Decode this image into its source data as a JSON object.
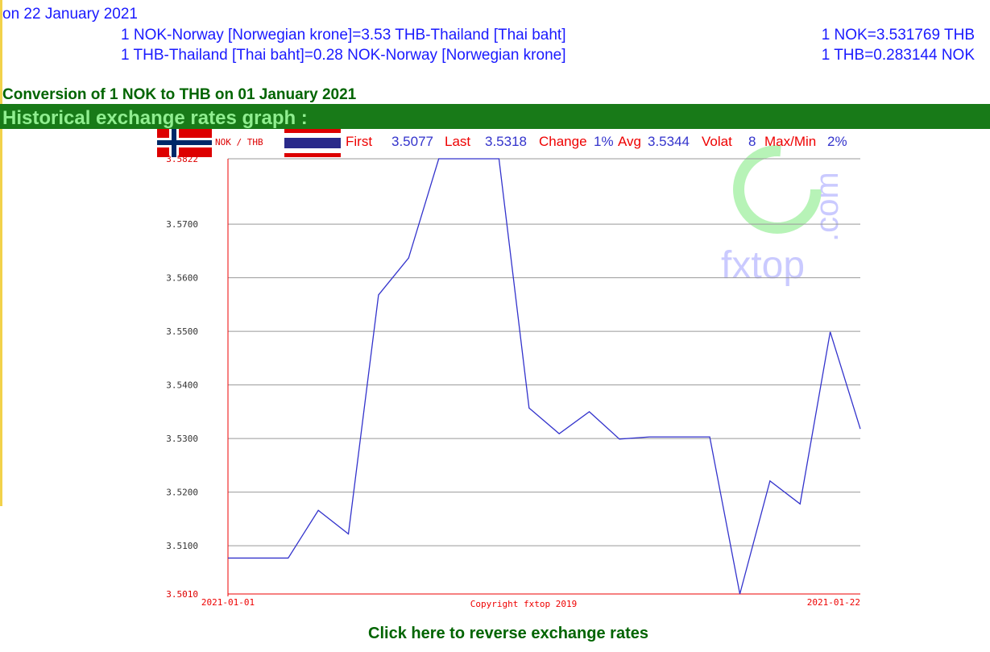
{
  "header": {
    "date_line": "on 22 January 2021",
    "rates": [
      {
        "text": "1 NOK-Norway [Norwegian krone]=3.53 THB-Thailand [Thai baht]",
        "exact": "1 NOK=3.531769 THB"
      },
      {
        "text": "1 THB-Thailand [Thai baht]=0.28 NOK-Norway [Norwegian krone]",
        "exact": "1 THB=0.283144 NOK"
      }
    ],
    "conversion": "Conversion of 1 NOK to THB on 01 January 2021",
    "section": "Historical exchange rates graph :"
  },
  "stats": {
    "pair": "NOK / THB",
    "first_label": "First",
    "first": "3.5077",
    "last_label": "Last",
    "last": "3.5318",
    "change_label": "Change",
    "change": "1%",
    "avg_label": "Avg",
    "avg": "3.5344",
    "volat_label": "Volat",
    "volat": "8",
    "maxmin_label": "Max/Min",
    "maxmin": "2%"
  },
  "watermark": {
    "brand": "fxtop",
    "domain": ".com"
  },
  "chart_data": {
    "type": "line",
    "categories": [
      "2021-01-01",
      null,
      null,
      null,
      null,
      null,
      null,
      null,
      null,
      null,
      null,
      null,
      null,
      null,
      null,
      null,
      null,
      null,
      null,
      null,
      null,
      "2021-01-22"
    ],
    "series": [
      {
        "name": "NOK / THB",
        "color": "#3333cc",
        "values": [
          3.5077,
          3.5077,
          3.5077,
          3.5166,
          3.5122,
          3.5568,
          3.5637,
          3.5822,
          3.5822,
          3.5822,
          3.5357,
          3.5309,
          3.535,
          3.5299,
          3.5303,
          3.5303,
          3.5303,
          3.501,
          3.5221,
          3.5178,
          3.5499,
          3.5318
        ]
      }
    ],
    "ylim": [
      3.501,
      3.5822
    ],
    "yticks": [
      {
        "value": 3.501,
        "label": "3.5010"
      },
      {
        "value": 3.51,
        "label": "3.5100"
      },
      {
        "value": 3.52,
        "label": "3.5200"
      },
      {
        "value": 3.53,
        "label": "3.5300"
      },
      {
        "value": 3.54,
        "label": "3.5400"
      },
      {
        "value": 3.55,
        "label": "3.5500"
      },
      {
        "value": 3.56,
        "label": "3.5600"
      },
      {
        "value": 3.57,
        "label": "3.5700"
      },
      3.5822
    ],
    "grid": true,
    "copyright": "Copyright fxtop 2019"
  },
  "footer": {
    "reverse_link": "Click here to reverse exchange rates"
  }
}
